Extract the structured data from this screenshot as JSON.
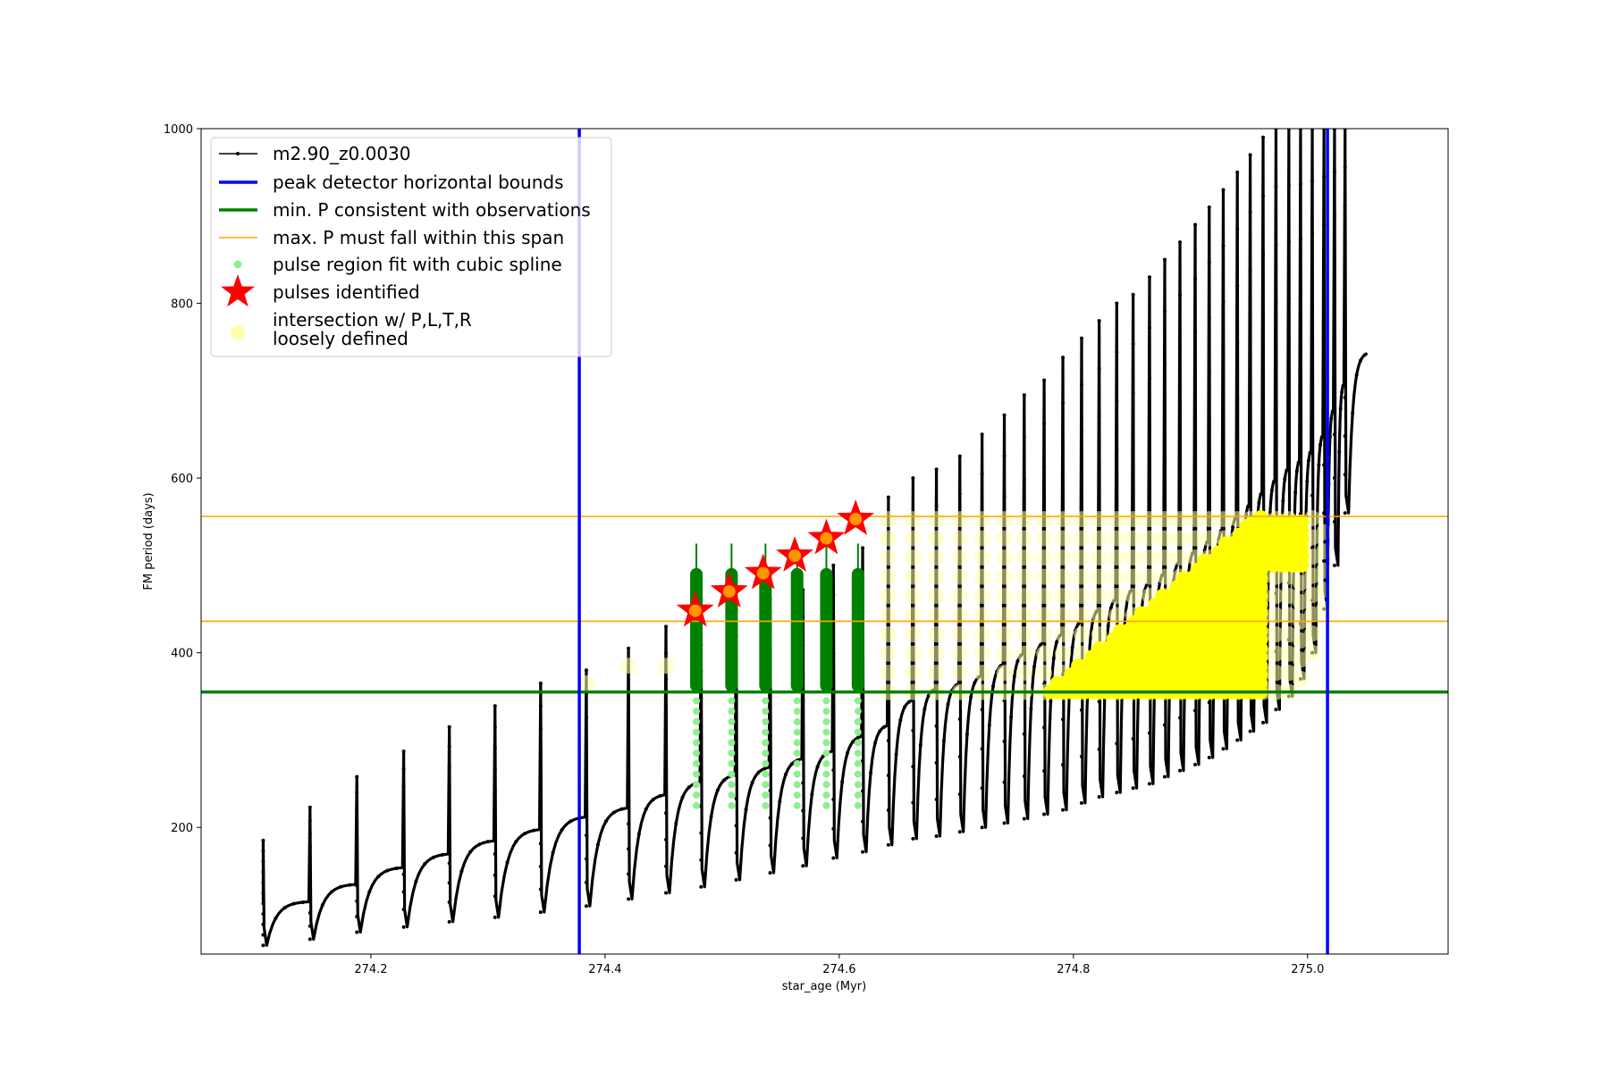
{
  "chart_data": {
    "type": "line",
    "xlabel": "star_age (Myr)",
    "ylabel": "FM period (days)",
    "xlim": [
      274.055,
      275.12
    ],
    "ylim": [
      55,
      1000
    ],
    "x_ticks": [
      274.2,
      274.4,
      274.6,
      274.8,
      275.0
    ],
    "x_tick_labels": [
      "274.2",
      "274.4",
      "274.6",
      "274.8",
      "275.0"
    ],
    "y_ticks": [
      200,
      400,
      600,
      800,
      1000
    ],
    "y_tick_labels": [
      "200",
      "400",
      "600",
      "800",
      "1000"
    ],
    "legend_position": "top-left",
    "grid": false,
    "colors": {
      "track": "#000000",
      "bounds": "#0000ff",
      "min_p": "#008000",
      "max_p": "#ffa500",
      "spline": "#90ee90",
      "pulse_region": "#008000",
      "star": "#ff0000",
      "star_inner": "#ffa500",
      "intersection": "#ffff00",
      "intersection_loose": "#ffffaa"
    },
    "series": [
      {
        "name": "m2.90_z0.0030",
        "kind": "track",
        "pulse_ages": [
          274.108,
          274.148,
          274.188,
          274.228,
          274.267,
          274.306,
          274.345,
          274.384,
          274.42,
          274.452,
          274.482,
          274.512,
          274.541,
          274.569,
          274.595,
          274.62,
          274.642,
          274.663,
          274.683,
          274.703,
          274.722,
          274.741,
          274.758,
          274.775,
          274.791,
          274.807,
          274.822,
          274.837,
          274.851,
          274.865,
          274.878,
          274.891,
          274.904,
          274.916,
          274.928,
          274.94,
          274.951,
          274.962,
          274.973,
          274.984,
          274.994,
          275.004,
          275.014,
          275.023,
          275.032
        ],
        "pulse_peaks": [
          185,
          223,
          258,
          287,
          315,
          339,
          365,
          380,
          405,
          430,
          440,
          450,
          462,
          472,
          500,
          520,
          578,
          600,
          610,
          625,
          650,
          672,
          695,
          712,
          738,
          760,
          780,
          800,
          810,
          830,
          850,
          870,
          890,
          910,
          930,
          950,
          970,
          990,
          1000,
          1000,
          1000,
          1000,
          1000,
          1000,
          1000
        ],
        "pulse_minima": [
          65,
          72,
          80,
          86,
          92,
          97,
          103,
          110,
          118,
          125,
          132,
          140,
          148,
          156,
          165,
          172,
          180,
          187,
          190,
          195,
          200,
          205,
          210,
          215,
          220,
          228,
          235,
          240,
          245,
          250,
          258,
          265,
          272,
          280,
          290,
          300,
          310,
          320,
          335,
          350,
          370,
          400,
          450,
          500,
          560
        ]
      },
      {
        "name": "peak detector horizontal bounds",
        "x": [
          274.378,
          275.017
        ]
      },
      {
        "name": "min. P consistent with observations",
        "y": 355
      },
      {
        "name": "max. P must fall within this span",
        "y": [
          436,
          556
        ]
      },
      {
        "name": "pulse region fit with cubic spline",
        "x": [
          274.478,
          274.508,
          274.537,
          274.564,
          274.589,
          274.616
        ],
        "y_range": [
          225,
          535
        ]
      },
      {
        "name": "pulses identified",
        "x": [
          274.477,
          274.506,
          274.535,
          274.562,
          274.589,
          274.614
        ],
        "y": [
          448,
          470,
          491,
          511,
          531,
          553
        ]
      },
      {
        "name": "intersection w/ P,L,T,R\nloosely defined",
        "y_range": [
          355,
          556
        ]
      }
    ]
  }
}
